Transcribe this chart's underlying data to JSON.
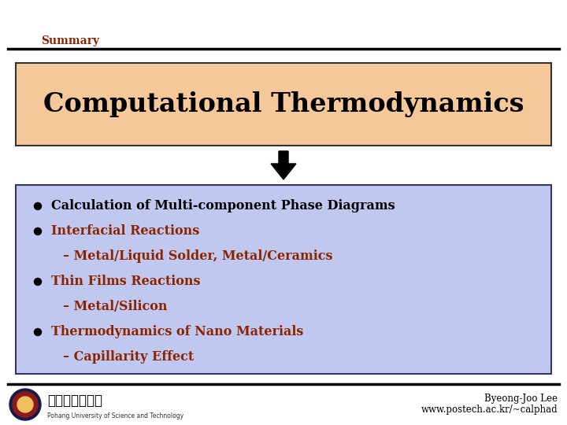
{
  "background_color": "#ffffff",
  "header_text": "Summary",
  "header_color": "#8B2500",
  "header_line_color": "#000000",
  "title_box_bg": "#F5C89A",
  "title_box_border": "#333333",
  "title_text": "Computational Thermodynamics",
  "title_text_color": "#000000",
  "bullet_box_bg": "#C0C8F0",
  "bullet_box_border": "#333366",
  "bullets": [
    {
      "text": "Calculation of Multi-component Phase Diagrams",
      "color": "#000000",
      "indent": false
    },
    {
      "text": "Interfacial Reactions",
      "color": "#8B2500",
      "indent": false
    },
    {
      "text": "– Metal/Liquid Solder, Metal/Ceramics",
      "color": "#8B2500",
      "indent": true
    },
    {
      "text": "Thin Films Reactions",
      "color": "#8B2500",
      "indent": false
    },
    {
      "text": "– Metal/Silicon",
      "color": "#8B2500",
      "indent": true
    },
    {
      "text": "Thermodynamics of Nano Materials",
      "color": "#8B2500",
      "indent": false
    },
    {
      "text": "– Capillarity Effect",
      "color": "#8B2500",
      "indent": true
    }
  ],
  "arrow_color": "#000000",
  "footer_right_line1": "Byeong-Joo Lee",
  "footer_right_line2": "www.postech.ac.kr/~calphad",
  "footer_text_color": "#000000",
  "footer_line_color": "#000000",
  "footer_logo_text": "포항공과대학교",
  "footer_logo_subtext": "Pohang University of Science and Technology"
}
